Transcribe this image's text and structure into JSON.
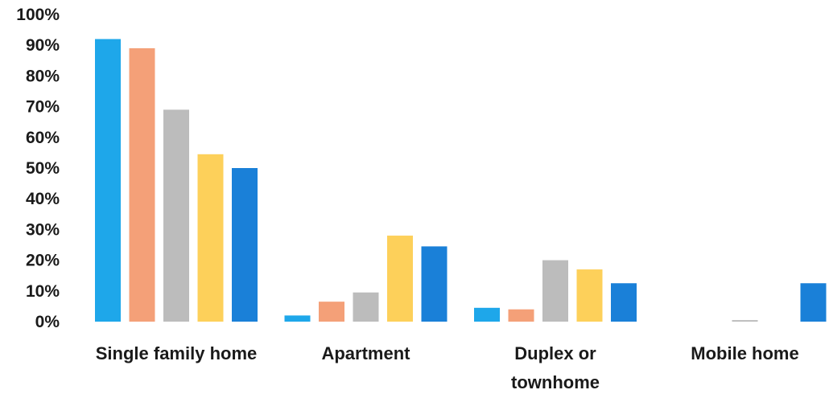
{
  "chart_data": {
    "type": "bar",
    "title": "",
    "xlabel": "",
    "ylabel": "",
    "ylim": [
      0,
      100
    ],
    "y_ticks": [
      "0%",
      "10%",
      "20%",
      "30%",
      "40%",
      "50%",
      "60%",
      "70%",
      "80%",
      "90%",
      "100%"
    ],
    "categories": [
      [
        "Single family home"
      ],
      [
        "Apartment"
      ],
      [
        "Duplex or",
        "townhome"
      ],
      [
        "Mobile home"
      ]
    ],
    "series": [
      {
        "color": "#1ea7ea",
        "values": [
          92,
          2,
          4.5,
          0
        ]
      },
      {
        "color": "#f4a078",
        "values": [
          89,
          6.5,
          4,
          0
        ]
      },
      {
        "color": "#bcbcbc",
        "values": [
          69,
          9.5,
          20,
          0.5
        ]
      },
      {
        "color": "#fdd05a",
        "values": [
          54.5,
          28,
          17,
          0
        ]
      },
      {
        "color": "#1a80d8",
        "values": [
          50,
          24.5,
          12.5,
          12.5
        ]
      }
    ],
    "grid": false,
    "legend": "none"
  }
}
